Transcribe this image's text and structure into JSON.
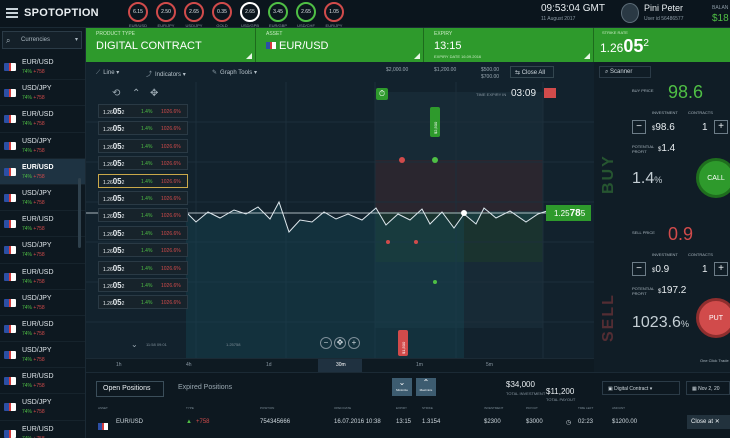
{
  "brand": {
    "name": "SPOTOPTION"
  },
  "gauges": [
    {
      "value": "6.15",
      "caption": "EUR/USD",
      "color": "red"
    },
    {
      "value": "2.50",
      "caption": "EUR/JPY",
      "color": "red"
    },
    {
      "value": "2.65",
      "caption": "USD/JPY",
      "color": "red"
    },
    {
      "value": "0.35",
      "caption": "GOLD",
      "color": "red"
    },
    {
      "value": "2.65",
      "caption": "USD/GPB",
      "color": "active"
    },
    {
      "value": "3.45",
      "caption": "EUR/GBP",
      "color": "green"
    },
    {
      "value": "2.65",
      "caption": "USD/CHF",
      "color": "green"
    },
    {
      "value": "1.05",
      "caption": "EUR/JPY",
      "color": "red"
    }
  ],
  "header": {
    "time": "09:53:04 GMT",
    "date": "11 August 2017",
    "user_name": "Pini Peter",
    "user_id": "User id 56486577",
    "balance_label": "BALAN",
    "balance_value": "$18"
  },
  "sidebar": {
    "filter_label": "Currencies",
    "assets": [
      {
        "name": "EUR/USD",
        "pct": "74%",
        "val": "+758"
      },
      {
        "name": "USD/JPY",
        "pct": "74%",
        "val": "+758"
      },
      {
        "name": "EUR/USD",
        "pct": "74%",
        "val": "+758"
      },
      {
        "name": "USD/JPY",
        "pct": "74%",
        "val": "+758"
      },
      {
        "name": "EUR/USD",
        "pct": "74%",
        "val": "+758",
        "active": true
      },
      {
        "name": "USD/JPY",
        "pct": "74%",
        "val": "+758"
      },
      {
        "name": "EUR/USD",
        "pct": "74%",
        "val": "+758"
      },
      {
        "name": "USD/JPY",
        "pct": "74%",
        "val": "+758"
      },
      {
        "name": "EUR/USD",
        "pct": "74%",
        "val": "+758"
      },
      {
        "name": "USD/JPY",
        "pct": "74%",
        "val": "+758"
      },
      {
        "name": "EUR/USD",
        "pct": "74%",
        "val": "+758"
      },
      {
        "name": "USD/JPY",
        "pct": "74%",
        "val": "+758"
      },
      {
        "name": "EUR/USD",
        "pct": "74%",
        "val": "+758"
      },
      {
        "name": "USD/JPY",
        "pct": "74%",
        "val": "+758"
      },
      {
        "name": "EUR/USD",
        "pct": "74%",
        "val": "+758"
      }
    ]
  },
  "strip": {
    "product_label": "PRODUCT TYPE",
    "product_value": "DIGITAL CONTRACT",
    "asset_label": "ASSET",
    "asset_value": "EUR/USD",
    "expiry_label": "EXPIRY",
    "expiry_value": "13:15",
    "expiry_sub": "EXPIRY DATE 16.09.2016",
    "strike_label": "STRIKE RATE",
    "strike_prefix": "1.26",
    "strike_main": "05",
    "strike_suffix": "2"
  },
  "chart_toolbar": {
    "line": "Line",
    "indicators": "Indicators",
    "graph_tools": "Graph Tools",
    "amt1": "$2,000.00",
    "amt2": "$1,200.00",
    "amt3": "$500.00",
    "amt4": "$700.00",
    "close_all": "Close All",
    "time_expiry_label": "TIME EXPIRY IN",
    "time_expiry_value": "03:09",
    "price_tag_prefix": "1.25",
    "price_tag_main": "78",
    "price_tag_suffix": "5",
    "marker_up": "$2,500",
    "marker_down": "$1,500",
    "from_label": "11:58 09:01",
    "to_label": "1.25758"
  },
  "strikes": [
    {
      "prefix": "1.26",
      "main": "05",
      "suffix": "2",
      "g": "1.4%",
      "r": "1026.6%"
    },
    {
      "prefix": "1.26",
      "main": "05",
      "suffix": "2",
      "g": "1.4%",
      "r": "1026.6%"
    },
    {
      "prefix": "1.26",
      "main": "05",
      "suffix": "2",
      "g": "1.4%",
      "r": "1026.6%"
    },
    {
      "prefix": "1.26",
      "main": "05",
      "suffix": "2",
      "g": "1.4%",
      "r": "1026.6%"
    },
    {
      "prefix": "1.26",
      "main": "05",
      "suffix": "2",
      "g": "1.4%",
      "r": "1026.6%",
      "sel": true
    },
    {
      "prefix": "1.26",
      "main": "05",
      "suffix": "2",
      "g": "1.4%",
      "r": "1026.6%"
    },
    {
      "prefix": "1.26",
      "main": "05",
      "suffix": "2",
      "g": "1.4%",
      "r": "1026.6%"
    },
    {
      "prefix": "1.26",
      "main": "05",
      "suffix": "2",
      "g": "1.4%",
      "r": "1026.6%"
    },
    {
      "prefix": "1.26",
      "main": "05",
      "suffix": "2",
      "g": "1.4%",
      "r": "1026.6%"
    },
    {
      "prefix": "1.26",
      "main": "05",
      "suffix": "2",
      "g": "1.4%",
      "r": "1026.6%"
    },
    {
      "prefix": "1.26",
      "main": "05",
      "suffix": "2",
      "g": "1.4%",
      "r": "1026.6%"
    },
    {
      "prefix": "1.26",
      "main": "05",
      "suffix": "2",
      "g": "1.4%",
      "r": "1026.6%"
    }
  ],
  "timeframes": [
    "1h",
    "4h",
    "1d",
    "1w",
    "30m",
    "1m",
    "5m"
  ],
  "timeframe_active": "30m",
  "right": {
    "scanner": "Scanner",
    "buy_price_label": "BUY PRICE",
    "buy_price": "98.6",
    "investment_label": "INVESTMENT",
    "contracts_label": "CONTRACTS",
    "buy_investment": "98.6",
    "buy_contracts": "1",
    "potential_label": "POTENTIAL PROFIT",
    "buy_profit": "1.4",
    "buy_pct": "1.4",
    "call": "CALL",
    "buy_word": "BUY",
    "sell_price_label": "SELL PRICE",
    "sell_price": "0.9",
    "sell_investment": "0.9",
    "sell_contracts": "1",
    "sell_profit": "197.2",
    "sell_pct": "1023.6",
    "put": "PUT",
    "sell_word": "SELL",
    "one_click": "One Click Trade"
  },
  "bottom": {
    "tab_open": "Open Positions",
    "tab_expired": "Expired Positions",
    "minimize": "Minimize",
    "maximize": "Maximize",
    "amount1": "$34,000",
    "amount1_label": "TOTAL INVESTMENT",
    "amount2": "$11,200",
    "amount2_label": "TOTAL PAYOUT",
    "product_select": "Digital Contract",
    "date_select": "Nov 2, 20",
    "columns": [
      "ASSET",
      "TYPE",
      "POSITION",
      "OPEN DATE",
      "EXPIRY",
      "STRIKE",
      "INVESTMENT",
      "PAYOUT",
      "TIME LEFT",
      "AMOUNT"
    ],
    "row": {
      "asset": "EUR/USD",
      "val": "+758",
      "position": "754345666",
      "open_date": "16.07.2016 10:38",
      "expiry": "13:15",
      "strike": "1.3154",
      "investment": "$2300",
      "payout": "$3000",
      "time_left": "02:23",
      "amount": "$1200.00"
    },
    "close_at": "Close at"
  },
  "colors": {
    "accent_green": "#2e9a2c",
    "accent_red": "#d14b4b",
    "bg": "#0f1b24"
  }
}
